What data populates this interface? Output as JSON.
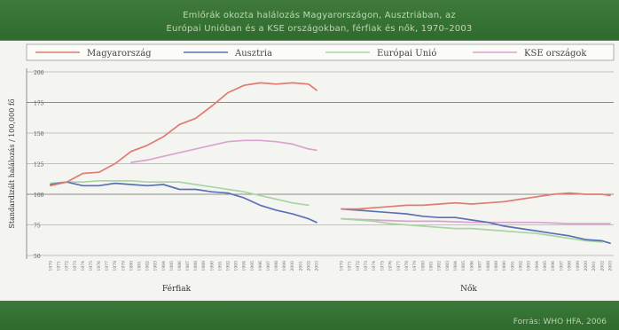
{
  "header": {
    "title_line1": "Emlőrák okozta halálozás Magyarországon, Ausztriában, az",
    "title_line2": "Európai Unióban és a KSE országokban, férfiak és nők, 1970–2003"
  },
  "footer": {
    "source": "Forrás: WHO HFA, 2006"
  },
  "colors": {
    "magyarorszag": "#e07a72",
    "ausztria": "#5a72b4",
    "eu": "#a9d4a3",
    "kse": "#d9a3cf",
    "gridline": "#8c8c8c"
  },
  "chart_data": {
    "type": "line",
    "ylabel": "Standardizált halálozás / 100,000 fő",
    "yticks": [
      50,
      75,
      100,
      125,
      150,
      175,
      200
    ],
    "ylim": [
      50,
      200
    ],
    "panels": [
      {
        "name": "Férfiak",
        "x_start": 1970,
        "x_end": 2003
      },
      {
        "name": "Nők",
        "x_start": 1970,
        "x_end": 2003
      }
    ],
    "legend": [
      "Magyarország",
      "Ausztria",
      "Európai Unió",
      "KSE országok"
    ],
    "series": [
      {
        "name": "Magyarország",
        "panel": "Férfiak",
        "x": [
          1970,
          1972,
          1974,
          1976,
          1978,
          1980,
          1982,
          1984,
          1986,
          1988,
          1990,
          1992,
          1994,
          1996,
          1998,
          2000,
          2002,
          2003
        ],
        "values": [
          107,
          110,
          117,
          118,
          125,
          135,
          140,
          147,
          157,
          162,
          172,
          183,
          189,
          191,
          190,
          191,
          190,
          185
        ]
      },
      {
        "name": "Ausztria",
        "panel": "Férfiak",
        "x": [
          1970,
          1972,
          1974,
          1976,
          1978,
          1980,
          1982,
          1984,
          1986,
          1988,
          1990,
          1992,
          1994,
          1996,
          1998,
          2000,
          2002,
          2003
        ],
        "values": [
          108,
          110,
          107,
          107,
          109,
          108,
          107,
          108,
          104,
          104,
          102,
          101,
          97,
          91,
          87,
          84,
          80,
          77
        ]
      },
      {
        "name": "Európai Unió",
        "panel": "Férfiak",
        "x": [
          1970,
          1972,
          1974,
          1976,
          1978,
          1980,
          1982,
          1984,
          1986,
          1988,
          1990,
          1992,
          1994,
          1996,
          1998,
          2000,
          2002
        ],
        "values": [
          109,
          110,
          110,
          111,
          111,
          111,
          110,
          110,
          110,
          108,
          106,
          104,
          102,
          99,
          96,
          93,
          91
        ]
      },
      {
        "name": "KSE országok",
        "panel": "Férfiak",
        "x": [
          1980,
          1982,
          1984,
          1986,
          1988,
          1990,
          1992,
          1994,
          1996,
          1998,
          2000,
          2002,
          2003
        ],
        "values": [
          126,
          128,
          131,
          134,
          137,
          140,
          143,
          144,
          144,
          143,
          141,
          137,
          136
        ]
      },
      {
        "name": "Magyarország",
        "panel": "Nők",
        "x": [
          1970,
          1972,
          1974,
          1976,
          1978,
          1980,
          1982,
          1984,
          1986,
          1988,
          1990,
          1992,
          1994,
          1996,
          1998,
          2000,
          2002,
          2003
        ],
        "values": [
          88,
          88,
          89,
          90,
          91,
          91,
          92,
          93,
          92,
          93,
          94,
          96,
          98,
          100,
          101,
          100,
          100,
          99
        ]
      },
      {
        "name": "Ausztria",
        "panel": "Nők",
        "x": [
          1970,
          1972,
          1974,
          1976,
          1978,
          1980,
          1982,
          1984,
          1986,
          1988,
          1990,
          1992,
          1994,
          1996,
          1998,
          2000,
          2002,
          2003
        ],
        "values": [
          88,
          87,
          86,
          85,
          84,
          82,
          81,
          81,
          79,
          77,
          74,
          72,
          70,
          68,
          66,
          63,
          62,
          60
        ]
      },
      {
        "name": "Európai Unió",
        "panel": "Nők",
        "x": [
          1970,
          1972,
          1974,
          1976,
          1978,
          1980,
          1982,
          1984,
          1986,
          1988,
          1990,
          1992,
          1994,
          1996,
          1998,
          2000,
          2002
        ],
        "values": [
          80,
          79,
          78,
          76,
          75,
          74,
          73,
          72,
          72,
          71,
          70,
          69,
          68,
          66,
          64,
          62,
          61
        ]
      },
      {
        "name": "KSE országok",
        "panel": "Nők",
        "x": [
          1970,
          1974,
          1978,
          1982,
          1986,
          1990,
          1994,
          1998,
          2002,
          2003
        ],
        "values": [
          80,
          79,
          78,
          78,
          77,
          77,
          77,
          76,
          76,
          76
        ]
      }
    ]
  }
}
